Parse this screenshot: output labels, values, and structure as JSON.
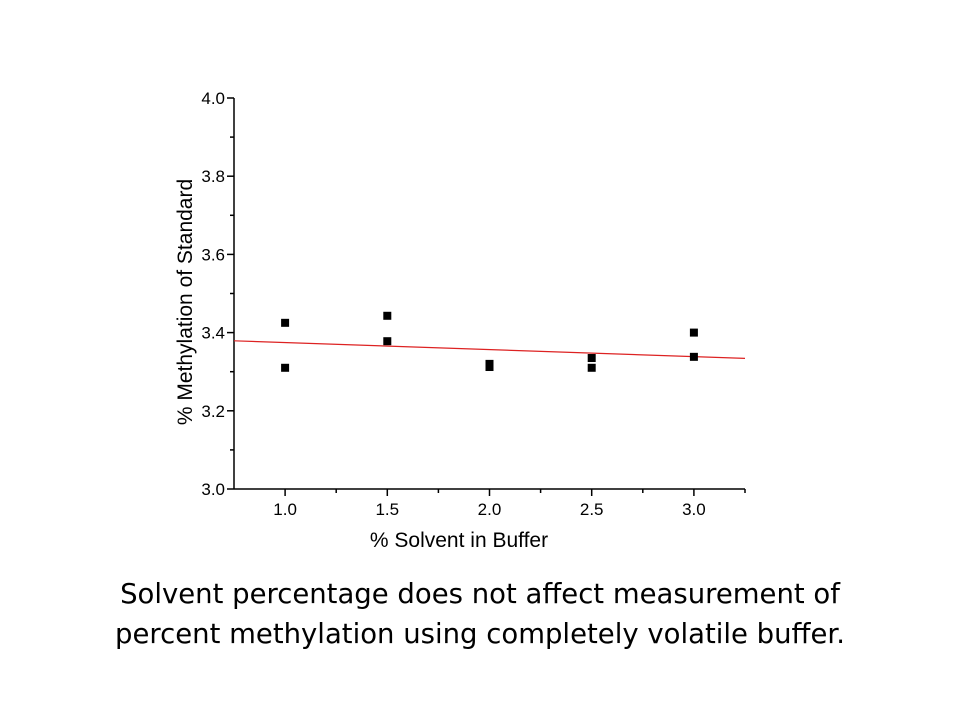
{
  "chart_data": {
    "type": "scatter",
    "xlabel": "% Solvent in Buffer",
    "ylabel": "% Methylation of Standard",
    "xlim": [
      0.75,
      3.25
    ],
    "ylim": [
      3.0,
      4.0
    ],
    "x_ticks": [
      "1.0",
      "1.5",
      "2.0",
      "2.5",
      "3.0"
    ],
    "x_tick_values": [
      1.0,
      1.5,
      2.0,
      2.5,
      3.0
    ],
    "x_minor_ticks": [
      1.25,
      1.75,
      2.25,
      2.75
    ],
    "y_ticks": [
      "3.0",
      "3.2",
      "3.4",
      "3.6",
      "3.8",
      "4.0"
    ],
    "y_tick_values": [
      3.0,
      3.2,
      3.4,
      3.6,
      3.8,
      4.0
    ],
    "y_minor_ticks": [
      3.1,
      3.3,
      3.5,
      3.7,
      3.9
    ],
    "grid": false,
    "points": [
      {
        "x": 1.0,
        "y": 3.425
      },
      {
        "x": 1.0,
        "y": 3.31
      },
      {
        "x": 1.5,
        "y": 3.443
      },
      {
        "x": 1.5,
        "y": 3.378
      },
      {
        "x": 2.0,
        "y": 3.32
      },
      {
        "x": 2.0,
        "y": 3.312
      },
      {
        "x": 2.5,
        "y": 3.335
      },
      {
        "x": 2.5,
        "y": 3.31
      },
      {
        "x": 3.0,
        "y": 3.4
      },
      {
        "x": 3.0,
        "y": 3.338
      }
    ],
    "trendline": {
      "x": [
        0.75,
        3.25
      ],
      "y": [
        3.379,
        3.334
      ]
    },
    "colors": {
      "points": "#000000",
      "trendline": "#dd2222",
      "axes": "#000000"
    }
  },
  "caption": {
    "line1": "Solvent percentage does not affect measurement of",
    "line2": "percent methylation using completely volatile buffer."
  }
}
